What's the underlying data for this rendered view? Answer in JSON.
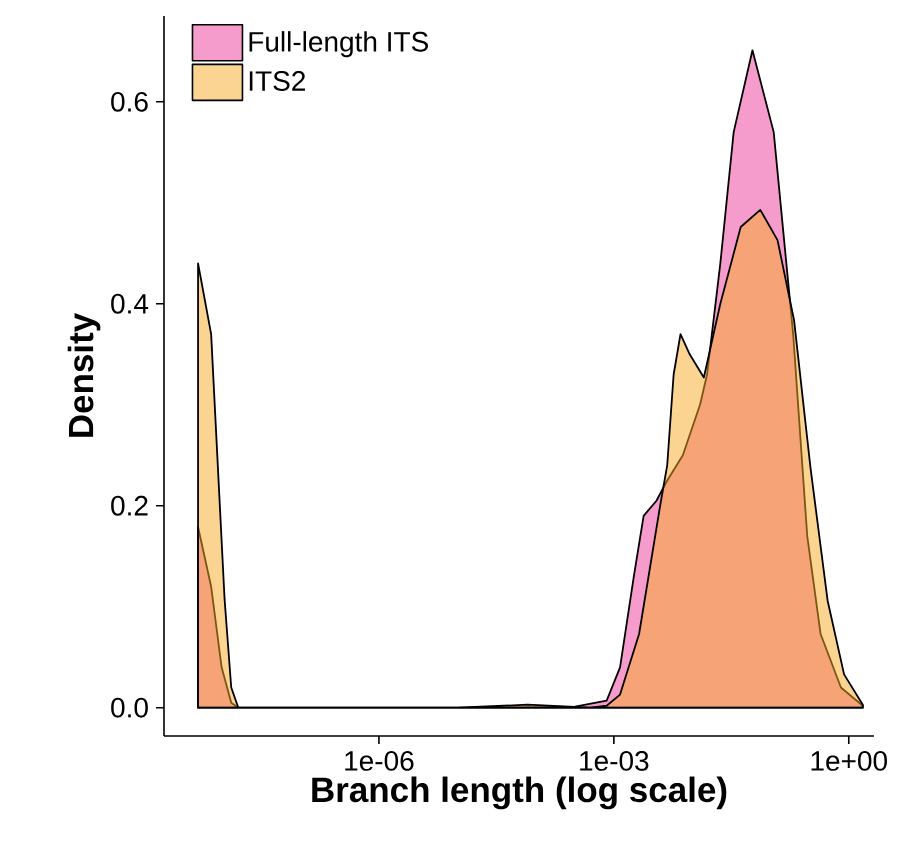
{
  "chart_data": {
    "type": "area",
    "xlabel": "Branch length (log scale)",
    "ylabel": "Density",
    "log": "x",
    "xlim": [
      1.8e-09,
      2.1
    ],
    "ylim": [
      -0.028,
      0.685
    ],
    "xticks": [
      {
        "value": 1e-06,
        "label": "1e-06"
      },
      {
        "value": 0.001,
        "label": "1e-03"
      },
      {
        "value": 1,
        "label": "1e+00"
      }
    ],
    "yticks": [
      {
        "value": 0,
        "label": "0.0"
      },
      {
        "value": 0.2,
        "label": "0.2"
      },
      {
        "value": 0.4,
        "label": "0.4"
      },
      {
        "value": 0.6,
        "label": "0.6"
      }
    ],
    "legend": "top left",
    "grid": false,
    "series": [
      {
        "name": "Full-length ITS",
        "color": "#ee3a9a",
        "x": [
          4.9e-09,
          7.2e-09,
          9.8e-09,
          1.3e-08,
          1.6e-08,
          1e-05,
          0.00032,
          0.00081,
          0.0012,
          0.0018,
          0.0024,
          0.0035,
          0.0048,
          0.0076,
          0.0126,
          0.0155,
          0.0229,
          0.0339,
          0.0589,
          0.11,
          0.195,
          0.295,
          0.437,
          0.794,
          1.51
        ],
        "values": [
          0.179,
          0.12,
          0.04,
          0.005,
          0,
          0,
          0.001,
          0.007,
          0.04,
          0.13,
          0.19,
          0.205,
          0.225,
          0.25,
          0.3,
          0.33,
          0.44,
          0.57,
          0.651,
          0.57,
          0.37,
          0.17,
          0.073,
          0.02,
          0.002
        ]
      },
      {
        "name": "ITS2",
        "color": "#f6aa22",
        "x": [
          4.9e-09,
          7.2e-09,
          1.07e-08,
          1.3e-08,
          1.6e-08,
          1e-05,
          7.9e-05,
          0.0005,
          0.00081,
          0.0012,
          0.0021,
          0.0039,
          0.0048,
          0.0058,
          0.0071,
          0.0093,
          0.0141,
          0.0229,
          0.0417,
          0.0741,
          0.123,
          0.2,
          0.324,
          0.537,
          0.871,
          1.51
        ],
        "values": [
          0.44,
          0.37,
          0.107,
          0.02,
          0,
          0,
          0.003,
          0,
          0.002,
          0.013,
          0.073,
          0.2,
          0.24,
          0.33,
          0.37,
          0.35,
          0.327,
          0.4,
          0.476,
          0.493,
          0.463,
          0.384,
          0.238,
          0.106,
          0.033,
          0.003
        ]
      }
    ]
  }
}
